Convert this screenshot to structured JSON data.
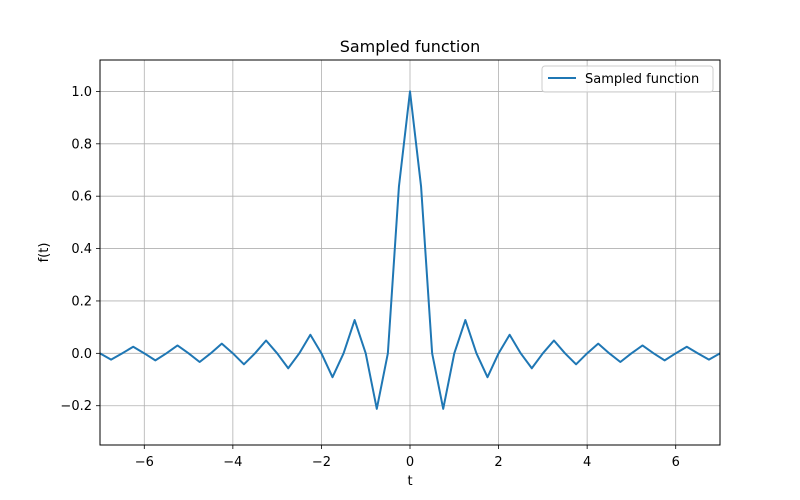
{
  "chart_data": {
    "type": "line",
    "title": "Sampled function",
    "xlabel": "t",
    "ylabel": "f(t)",
    "xlim": [
      -7,
      7
    ],
    "ylim": [
      -0.35,
      1.12
    ],
    "xticks": [
      -6,
      -4,
      -2,
      0,
      2,
      4,
      6
    ],
    "xtick_labels": [
      "−6",
      "−4",
      "−2",
      "0",
      "2",
      "4",
      "6"
    ],
    "yticks": [
      -0.2,
      0.0,
      0.2,
      0.4,
      0.6,
      0.8,
      1.0
    ],
    "ytick_labels": [
      "−0.2",
      "0.0",
      "0.2",
      "0.4",
      "0.6",
      "0.8",
      "1.0"
    ],
    "grid": true,
    "legend": {
      "position": "top-right",
      "entries": [
        "Sampled function"
      ]
    },
    "series": [
      {
        "name": "Sampled function",
        "color": "#1f77b4",
        "x": [
          -7.0,
          -6.75,
          -6.5,
          -6.25,
          -6.0,
          -5.75,
          -5.5,
          -5.25,
          -5.0,
          -4.75,
          -4.5,
          -4.25,
          -4.0,
          -3.75,
          -3.5,
          -3.25,
          -3.0,
          -2.75,
          -2.5,
          -2.25,
          -2.0,
          -1.75,
          -1.5,
          -1.25,
          -1.0,
          -0.75,
          -0.5,
          -0.25,
          0.0,
          0.25,
          0.5,
          0.75,
          1.0,
          1.25,
          1.5,
          1.75,
          2.0,
          2.25,
          2.5,
          2.75,
          3.0,
          3.25,
          3.5,
          3.75,
          4.0,
          4.25,
          4.5,
          4.75,
          5.0,
          5.25,
          5.5,
          5.75,
          6.0,
          6.25,
          6.5,
          6.75,
          7.0
        ],
        "y": [
          0.0,
          -0.024,
          0.0,
          0.025,
          0.0,
          -0.027,
          0.0,
          0.03,
          0.0,
          -0.033,
          0.0,
          0.037,
          0.0,
          -0.042,
          0.0,
          0.049,
          0.0,
          -0.057,
          0.0,
          0.071,
          0.0,
          -0.091,
          0.0,
          0.127,
          0.0,
          -0.212,
          0.0,
          0.637,
          1.0,
          0.637,
          0.0,
          -0.212,
          0.0,
          0.127,
          0.0,
          -0.091,
          0.0,
          0.071,
          0.0,
          -0.057,
          0.0,
          0.049,
          0.0,
          -0.042,
          0.0,
          0.037,
          0.0,
          -0.033,
          0.0,
          0.03,
          0.0,
          -0.027,
          0.0,
          0.025,
          0.0,
          -0.024,
          0.0
        ]
      }
    ]
  }
}
